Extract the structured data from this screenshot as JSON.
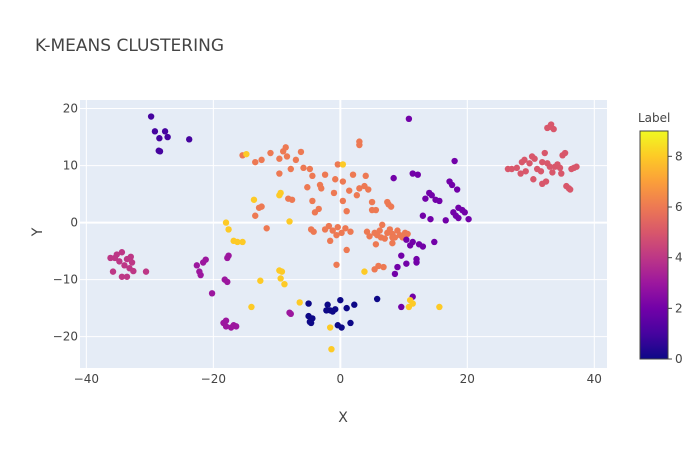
{
  "chart_data": {
    "type": "scatter",
    "title": "K-MEANS CLUSTERING",
    "xlabel": "X",
    "ylabel": "Y",
    "xlim": [
      -41,
      42
    ],
    "ylim": [
      -25.5,
      21.5
    ],
    "xticks": [
      -40,
      -20,
      0,
      20,
      40
    ],
    "yticks": [
      -20,
      -10,
      0,
      10,
      20
    ],
    "grid": true,
    "colorbar": {
      "title": "Label",
      "range": [
        0,
        9
      ],
      "ticks": [
        0,
        2,
        4,
        6,
        8
      ],
      "colorscale": [
        "#0d0887",
        "#46039f",
        "#7201a8",
        "#9c179e",
        "#bd3786",
        "#d8576b",
        "#ed7953",
        "#fb9f3a",
        "#fdca26",
        "#f0f921"
      ]
    },
    "points": [
      [
        -29.8,
        18.6,
        1
      ],
      [
        -29.2,
        16.0,
        1
      ],
      [
        -28.5,
        14.8,
        1
      ],
      [
        -27.6,
        16.0,
        1
      ],
      [
        -27.2,
        15.0,
        1
      ],
      [
        -28.6,
        12.6,
        1
      ],
      [
        -23.8,
        14.6,
        1
      ],
      [
        -28.4,
        12.5,
        1
      ],
      [
        -36.2,
        -6.2,
        4
      ],
      [
        -35.8,
        -8.6,
        4
      ],
      [
        -35.2,
        -5.6,
        4
      ],
      [
        -34.8,
        -6.8,
        4
      ],
      [
        -34.4,
        -5.2,
        4
      ],
      [
        -34.0,
        -7.5,
        4
      ],
      [
        -33.6,
        -6.4,
        4
      ],
      [
        -33.2,
        -8.0,
        4
      ],
      [
        -33.6,
        -9.5,
        4
      ],
      [
        -34.4,
        -9.5,
        4
      ],
      [
        -32.6,
        -8.5,
        4
      ],
      [
        -32.8,
        -7.0,
        4
      ],
      [
        -33.0,
        -6.0,
        4
      ],
      [
        -30.6,
        -8.6,
        4
      ],
      [
        -35.5,
        -6.2,
        4
      ],
      [
        -22.6,
        -7.5,
        3
      ],
      [
        -22.2,
        -8.6,
        3
      ],
      [
        -22.0,
        -9.2,
        3
      ],
      [
        -21.2,
        -6.5,
        3
      ],
      [
        -21.6,
        -7.0,
        3
      ],
      [
        -20.2,
        -12.4,
        3
      ],
      [
        -18.2,
        -10.0,
        3
      ],
      [
        -17.8,
        -10.4,
        3
      ],
      [
        -17.8,
        -6.2,
        3
      ],
      [
        -17.6,
        -5.8,
        3
      ],
      [
        -18.4,
        -17.6,
        3
      ],
      [
        -18.0,
        -18.2,
        3
      ],
      [
        -17.2,
        -18.4,
        3
      ],
      [
        -16.8,
        -18.0,
        3
      ],
      [
        -16.4,
        -18.2,
        3
      ],
      [
        -18.0,
        -17.2,
        3
      ],
      [
        -8.0,
        -15.8,
        3
      ],
      [
        -7.8,
        -16.0,
        3
      ],
      [
        -15.4,
        11.8,
        6
      ],
      [
        -13.4,
        10.6,
        6
      ],
      [
        -12.4,
        11.0,
        6
      ],
      [
        -11.0,
        12.2,
        6
      ],
      [
        -9.6,
        11.2,
        6
      ],
      [
        -9.0,
        12.5,
        6
      ],
      [
        -8.6,
        13.2,
        6
      ],
      [
        -8.4,
        11.6,
        6
      ],
      [
        -7.8,
        9.4,
        6
      ],
      [
        -7.0,
        11.0,
        6
      ],
      [
        -6.2,
        12.4,
        6
      ],
      [
        -5.8,
        9.6,
        6
      ],
      [
        -4.8,
        9.4,
        6
      ],
      [
        -4.4,
        8.2,
        6
      ],
      [
        -3.2,
        6.6,
        6
      ],
      [
        -2.4,
        8.4,
        6
      ],
      [
        -0.8,
        7.6,
        6
      ],
      [
        -0.4,
        10.2,
        6
      ],
      [
        -9.6,
        8.6,
        6
      ],
      [
        -8.2,
        4.2,
        6
      ],
      [
        -7.6,
        4.0,
        6
      ],
      [
        -5.2,
        6.2,
        6
      ],
      [
        -3.0,
        6.0,
        6
      ],
      [
        -1.0,
        5.2,
        6
      ],
      [
        0.4,
        7.2,
        6
      ],
      [
        1.4,
        5.6,
        6
      ],
      [
        2.0,
        8.4,
        6
      ],
      [
        3.0,
        13.6,
        6
      ],
      [
        3.0,
        14.2,
        6
      ],
      [
        3.0,
        6.0,
        6
      ],
      [
        3.8,
        6.4,
        6
      ],
      [
        4.0,
        8.2,
        6
      ],
      [
        4.4,
        5.8,
        6
      ],
      [
        5.0,
        3.6,
        6
      ],
      [
        5.6,
        2.2,
        6
      ],
      [
        2.6,
        4.8,
        6
      ],
      [
        -12.8,
        2.6,
        6
      ],
      [
        -12.4,
        2.8,
        6
      ],
      [
        -11.6,
        -1.0,
        6
      ],
      [
        -13.4,
        1.2,
        6
      ],
      [
        -4.4,
        3.8,
        6
      ],
      [
        -4.0,
        1.8,
        6
      ],
      [
        -3.4,
        2.4,
        6
      ],
      [
        -4.2,
        -1.6,
        6
      ],
      [
        -4.6,
        -1.2,
        6
      ],
      [
        -2.4,
        -1.2,
        6
      ],
      [
        -1.8,
        -0.6,
        6
      ],
      [
        -1.2,
        -1.4,
        6
      ],
      [
        -0.4,
        -0.8,
        6
      ],
      [
        0.2,
        -1.8,
        6
      ],
      [
        0.8,
        -1.0,
        6
      ],
      [
        1.6,
        -1.6,
        6
      ],
      [
        0.4,
        3.8,
        6
      ],
      [
        1.0,
        2.0,
        6
      ],
      [
        -1.6,
        -3.2,
        6
      ],
      [
        -0.6,
        -2.2,
        6
      ],
      [
        1.0,
        -4.8,
        6
      ],
      [
        -0.6,
        -7.4,
        6
      ],
      [
        4.2,
        -1.6,
        6
      ],
      [
        4.6,
        -2.4,
        6
      ],
      [
        5.4,
        -1.8,
        6
      ],
      [
        5.8,
        -2.2,
        6
      ],
      [
        6.2,
        -1.4,
        6
      ],
      [
        6.6,
        -0.4,
        6
      ],
      [
        7.0,
        -2.8,
        6
      ],
      [
        7.4,
        -1.8,
        6
      ],
      [
        7.8,
        -1.2,
        6
      ],
      [
        8.2,
        -2.0,
        6
      ],
      [
        8.6,
        -2.6,
        6
      ],
      [
        9.0,
        -1.4,
        6
      ],
      [
        9.4,
        -2.2,
        6
      ],
      [
        9.8,
        -2.6,
        6
      ],
      [
        10.2,
        -1.8,
        6
      ],
      [
        10.6,
        -2.0,
        6
      ],
      [
        5.6,
        -3.8,
        6
      ],
      [
        6.4,
        -2.6,
        6
      ],
      [
        5.4,
        -8.2,
        6
      ],
      [
        6.0,
        -7.6,
        6
      ],
      [
        6.8,
        -7.8,
        6
      ],
      [
        7.4,
        3.6,
        6
      ],
      [
        7.6,
        3.2,
        6
      ],
      [
        8.0,
        2.8,
        6
      ],
      [
        5.0,
        2.2,
        6
      ],
      [
        8.2,
        -2.6,
        6
      ],
      [
        8.2,
        -3.6,
        6
      ],
      [
        27.0,
        9.4,
        5
      ],
      [
        27.8,
        9.6,
        5
      ],
      [
        28.6,
        10.6,
        5
      ],
      [
        29.0,
        11.0,
        5
      ],
      [
        29.8,
        10.4,
        5
      ],
      [
        30.2,
        11.6,
        5
      ],
      [
        30.6,
        11.2,
        5
      ],
      [
        31.0,
        9.4,
        5
      ],
      [
        31.6,
        9.0,
        5
      ],
      [
        31.8,
        10.6,
        5
      ],
      [
        32.2,
        12.2,
        5
      ],
      [
        32.6,
        10.4,
        5
      ],
      [
        32.6,
        16.6,
        5
      ],
      [
        33.0,
        16.8,
        5
      ],
      [
        33.2,
        17.2,
        5
      ],
      [
        33.6,
        16.4,
        5
      ],
      [
        33.8,
        9.8,
        5
      ],
      [
        34.2,
        10.2,
        5
      ],
      [
        34.6,
        9.6,
        5
      ],
      [
        35.0,
        11.8,
        5
      ],
      [
        35.4,
        12.2,
        5
      ],
      [
        35.6,
        6.4,
        5
      ],
      [
        36.0,
        6.0,
        5
      ],
      [
        36.2,
        5.8,
        5
      ],
      [
        36.4,
        9.4,
        5
      ],
      [
        36.8,
        9.6,
        5
      ],
      [
        37.2,
        9.8,
        5
      ],
      [
        30.4,
        7.6,
        5
      ],
      [
        31.8,
        6.8,
        5
      ],
      [
        32.4,
        7.2,
        5
      ],
      [
        34.8,
        8.6,
        5
      ],
      [
        29.2,
        9.0,
        5
      ],
      [
        28.4,
        8.6,
        5
      ],
      [
        26.4,
        9.4,
        5
      ],
      [
        33.0,
        9.8,
        5
      ],
      [
        33.4,
        8.8,
        5
      ],
      [
        10.8,
        18.2,
        2
      ],
      [
        11.4,
        8.6,
        2
      ],
      [
        12.2,
        8.4,
        2
      ],
      [
        13.4,
        4.2,
        2
      ],
      [
        14.0,
        5.2,
        2
      ],
      [
        14.4,
        4.8,
        2
      ],
      [
        15.0,
        4.0,
        2
      ],
      [
        15.6,
        3.8,
        2
      ],
      [
        17.2,
        7.2,
        2
      ],
      [
        17.6,
        6.6,
        2
      ],
      [
        18.0,
        10.8,
        2
      ],
      [
        18.4,
        5.8,
        2
      ],
      [
        18.6,
        2.6,
        2
      ],
      [
        19.2,
        2.2,
        2
      ],
      [
        19.6,
        1.8,
        2
      ],
      [
        17.8,
        1.8,
        2
      ],
      [
        18.2,
        1.2,
        2
      ],
      [
        18.6,
        0.8,
        2
      ],
      [
        20.2,
        0.6,
        2
      ],
      [
        16.6,
        0.4,
        2
      ],
      [
        14.2,
        0.6,
        2
      ],
      [
        13.0,
        1.2,
        2
      ],
      [
        14.8,
        -3.4,
        2
      ],
      [
        11.4,
        -3.4,
        2
      ],
      [
        12.4,
        -3.8,
        2
      ],
      [
        13.0,
        -4.2,
        2
      ],
      [
        11.0,
        -4.0,
        2
      ],
      [
        9.6,
        -5.8,
        2
      ],
      [
        10.4,
        -7.2,
        2
      ],
      [
        9.0,
        -7.8,
        2
      ],
      [
        8.6,
        -9.0,
        2
      ],
      [
        9.6,
        -14.8,
        2
      ],
      [
        11.4,
        -13.0,
        2
      ],
      [
        8.4,
        7.8,
        2
      ],
      [
        12.0,
        -6.4,
        2
      ],
      [
        12.0,
        -7.0,
        2
      ],
      [
        10.4,
        -3.0,
        2
      ],
      [
        -5.0,
        -14.2,
        0
      ],
      [
        -5.0,
        -16.4,
        0
      ],
      [
        -4.6,
        -17.6,
        0
      ],
      [
        -4.4,
        -16.8,
        0
      ],
      [
        -2.0,
        -14.4,
        0
      ],
      [
        -1.6,
        -15.4,
        0
      ],
      [
        -1.2,
        -15.6,
        0
      ],
      [
        -0.8,
        -15.2,
        0
      ],
      [
        -0.4,
        -18.0,
        0
      ],
      [
        0.0,
        -13.6,
        0
      ],
      [
        0.2,
        -18.4,
        0
      ],
      [
        1.6,
        -17.6,
        0
      ],
      [
        2.2,
        -14.4,
        0
      ],
      [
        1.0,
        -15.0,
        0
      ],
      [
        5.8,
        -13.4,
        0
      ],
      [
        -2.2,
        -15.4,
        0
      ],
      [
        -4.8,
        -17.4,
        0
      ],
      [
        -18.0,
        0.0,
        8
      ],
      [
        -17.6,
        -1.2,
        8
      ],
      [
        -16.8,
        -3.2,
        8
      ],
      [
        -16.2,
        -3.4,
        8
      ],
      [
        -15.4,
        -3.4,
        8
      ],
      [
        -14.8,
        12.0,
        8
      ],
      [
        -13.6,
        4.0,
        8
      ],
      [
        -12.6,
        -10.2,
        8
      ],
      [
        -9.6,
        -8.4,
        8
      ],
      [
        -9.2,
        -8.6,
        8
      ],
      [
        -9.4,
        -9.8,
        8
      ],
      [
        -8.8,
        -10.8,
        8
      ],
      [
        -9.4,
        5.2,
        8
      ],
      [
        -8.0,
        0.2,
        8
      ],
      [
        -6.4,
        -14.0,
        8
      ],
      [
        -1.6,
        -18.4,
        8
      ],
      [
        -1.4,
        -22.2,
        8
      ],
      [
        0.4,
        10.2,
        8
      ],
      [
        10.8,
        -14.8,
        8
      ],
      [
        11.0,
        -13.6,
        8
      ],
      [
        11.4,
        -14.2,
        8
      ],
      [
        15.6,
        -14.8,
        8
      ],
      [
        -14.0,
        -14.8,
        8
      ],
      [
        3.8,
        -8.6,
        8
      ],
      [
        -9.6,
        4.8,
        8
      ]
    ]
  }
}
